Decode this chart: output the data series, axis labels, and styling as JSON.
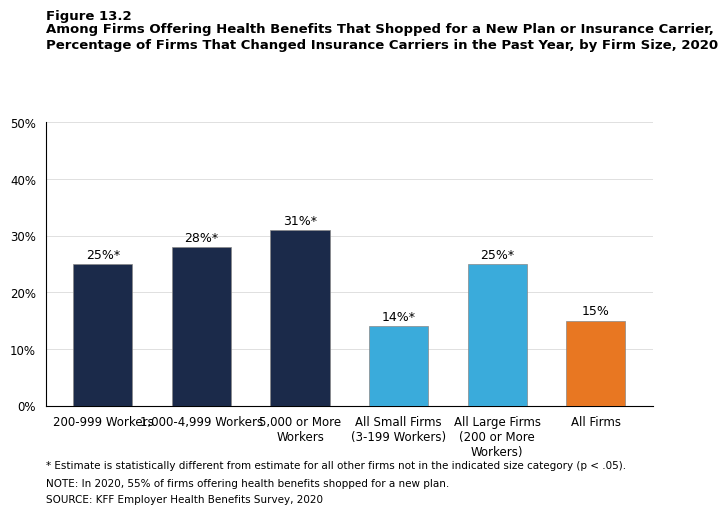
{
  "categories": [
    "200-999 Workers",
    "1,000-4,999 Workers",
    "5,000 or More\nWorkers",
    "All Small Firms\n(3-199 Workers)",
    "All Large Firms\n(200 or More\nWorkers)",
    "All Firms"
  ],
  "values": [
    25,
    28,
    31,
    14,
    25,
    15
  ],
  "labels": [
    "25%*",
    "28%*",
    "31%*",
    "14%*",
    "25%*",
    "15%"
  ],
  "bar_colors": [
    "#1b2a4a",
    "#1b2a4a",
    "#1b2a4a",
    "#3aabdb",
    "#3aabdb",
    "#e87722"
  ],
  "bar_edgecolor": "#888888",
  "figure_label": "Figure 13.2",
  "title_line1": "Among Firms Offering Health Benefits That Shopped for a New Plan or Insurance Carrier,",
  "title_line2": "Percentage of Firms That Changed Insurance Carriers in the Past Year, by Firm Size, 2020",
  "ylim": [
    0,
    50
  ],
  "yticks": [
    0,
    10,
    20,
    30,
    40,
    50
  ],
  "ytick_labels": [
    "0%",
    "10%",
    "20%",
    "30%",
    "40%",
    "50%"
  ],
  "footnote1": "* Estimate is statistically different from estimate for all other firms not in the indicated size category (p < .05).",
  "footnote2": "NOTE: In 2020, 55% of firms offering health benefits shopped for a new plan.",
  "footnote3": "SOURCE: KFF Employer Health Benefits Survey, 2020",
  "background_color": "#ffffff",
  "label_fontsize": 9,
  "tick_fontsize": 8.5,
  "title_fontsize": 9.5,
  "footnote_fontsize": 7.5
}
